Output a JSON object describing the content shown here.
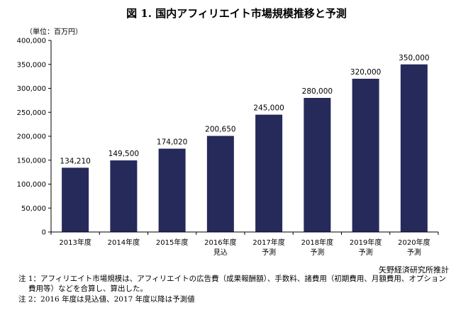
{
  "title": "図 1.  国内アフィリエイト市場規模推移と予測",
  "unit_label": "（単位：百万円）",
  "source": "矢野経済研究所推計",
  "notes": [
    "注 1：アフィリエイト市場規模は、アフィリエイトの広告費（成果報酬額）、手数料、諸費用（初期費用、月額費用、オプション",
    "費用等）などを合算し、算出した。",
    "注 2：2016 年度は見込値、2017 年度以降は予測値"
  ],
  "chart_data": {
    "type": "bar",
    "categories": [
      [
        "2013年度"
      ],
      [
        "2014年度"
      ],
      [
        "2015年度"
      ],
      [
        "2016年度",
        "見込"
      ],
      [
        "2017年度",
        "予測"
      ],
      [
        "2018年度",
        "予測"
      ],
      [
        "2019年度",
        "予測"
      ],
      [
        "2020年度",
        "予測"
      ]
    ],
    "values": [
      134210,
      149500,
      174020,
      200650,
      245000,
      280000,
      320000,
      350000
    ],
    "value_labels": [
      "134,210",
      "149,500",
      "174,020",
      "200,650",
      "245,000",
      "280,000",
      "320,000",
      "350,000"
    ],
    "ylim": [
      0,
      400000
    ],
    "yticks": [
      0,
      50000,
      100000,
      150000,
      200000,
      250000,
      300000,
      350000,
      400000
    ],
    "ytick_labels": [
      "0",
      "50,000",
      "100,000",
      "150,000",
      "200,000",
      "250,000",
      "300,000",
      "350,000",
      "400,000"
    ],
    "bar_color": "#252a5b",
    "grid": false
  }
}
